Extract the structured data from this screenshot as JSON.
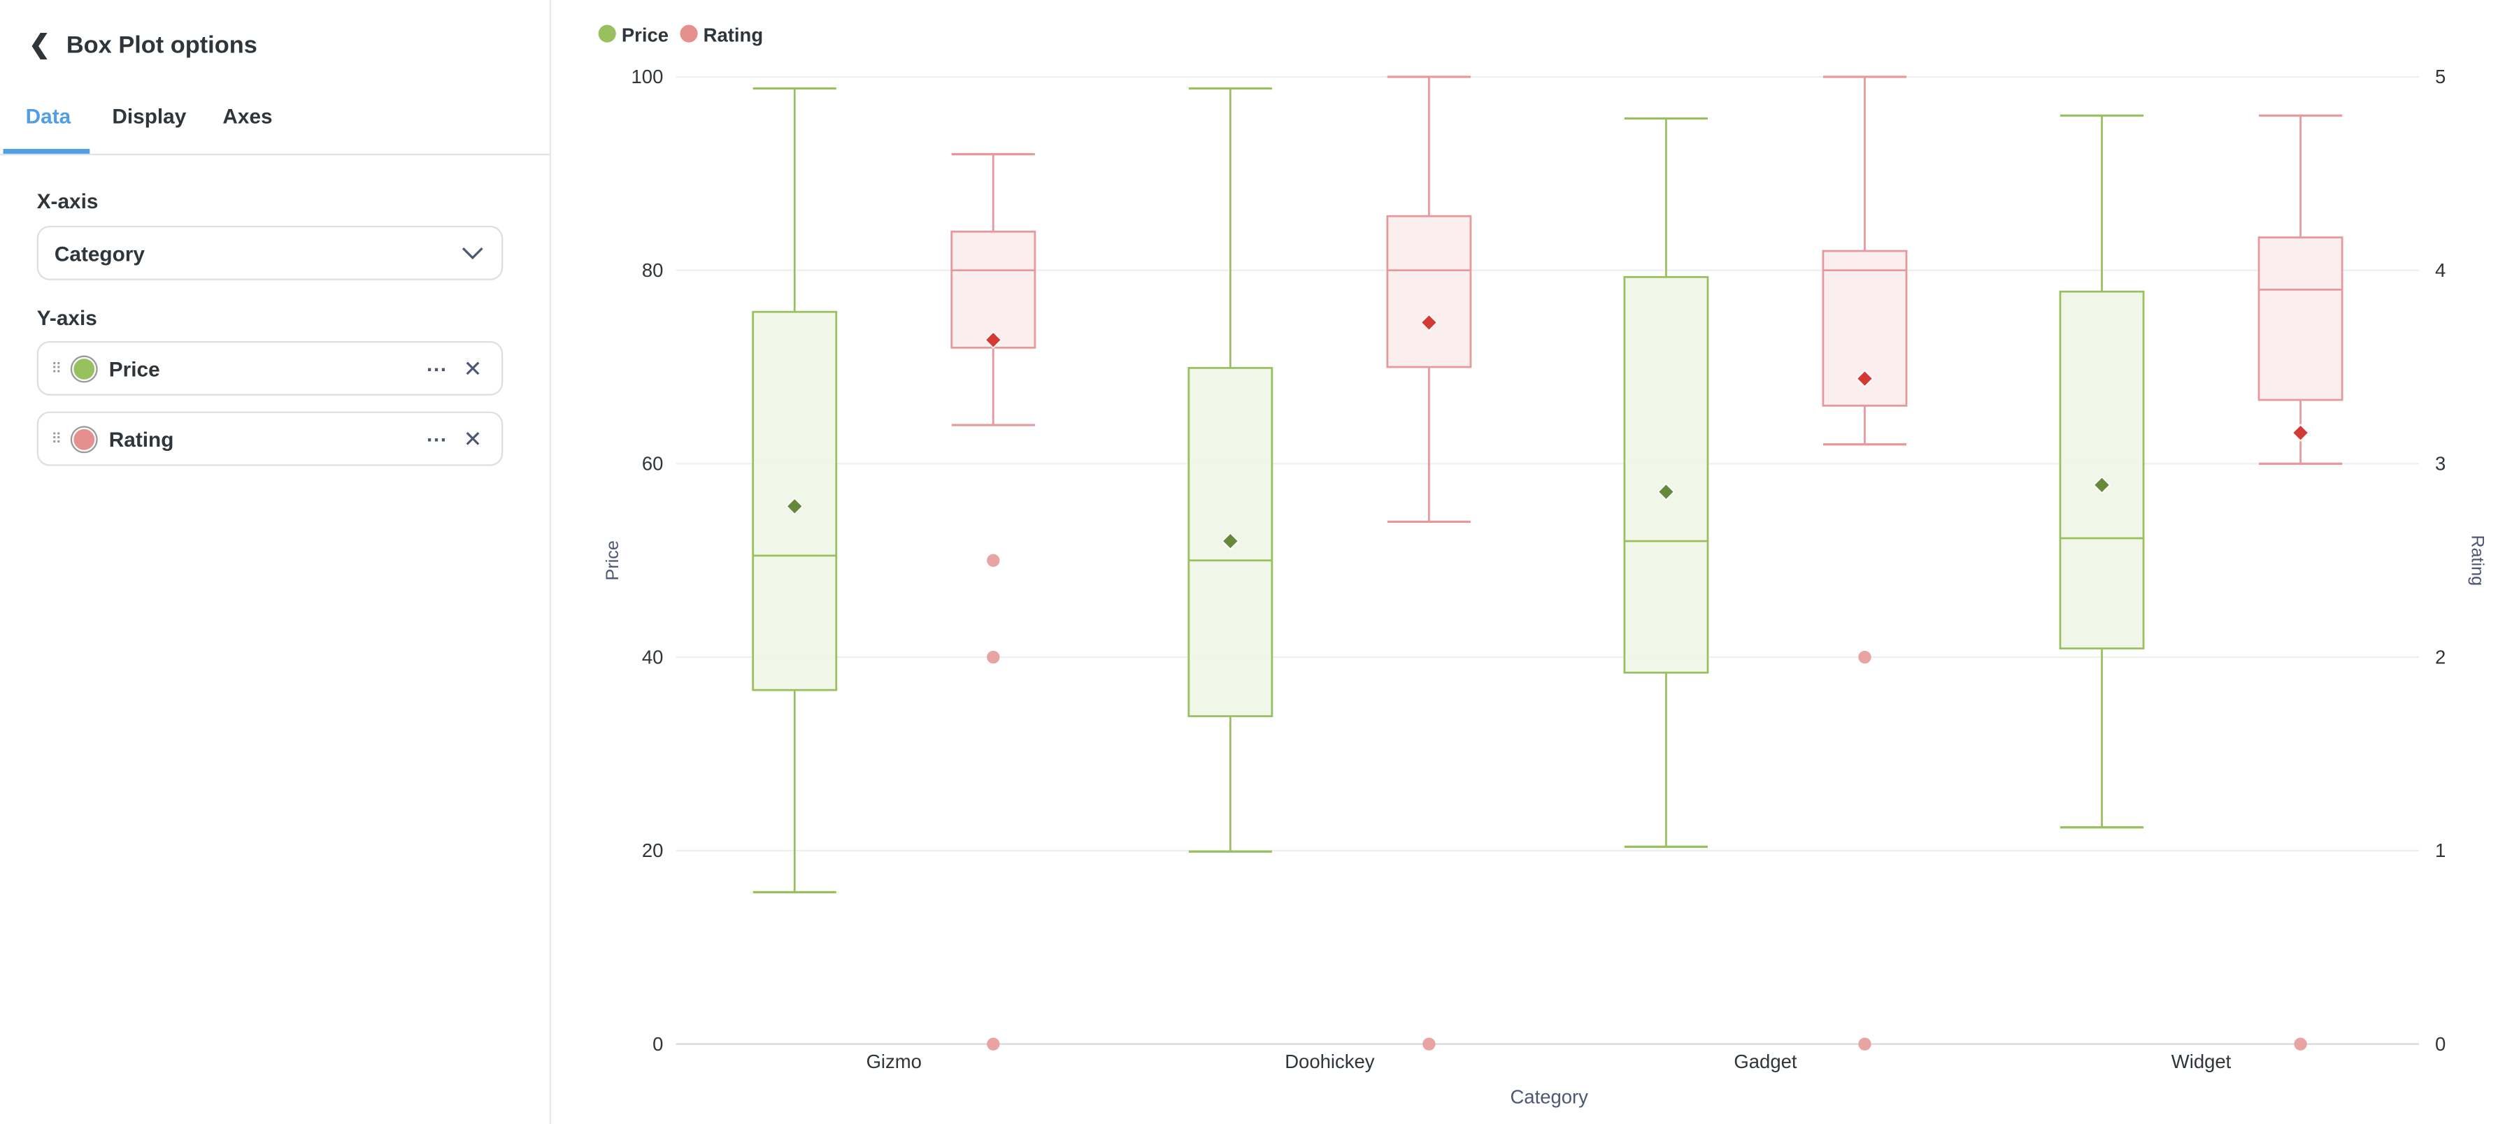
{
  "sidebar": {
    "title": "Box Plot options",
    "tabs": [
      {
        "label": "Data",
        "active": true
      },
      {
        "label": "Display"
      },
      {
        "label": "Axes"
      }
    ],
    "x_axis_label": "X-axis",
    "x_axis_value": "Category",
    "y_axis_label": "Y-axis",
    "y_series": [
      {
        "label": "Price",
        "color": "#98c05f"
      },
      {
        "label": "Rating",
        "color": "#e5908f"
      }
    ]
  },
  "chart_data": {
    "type": "boxplot",
    "xlabel": "Category",
    "ylabel_left": "Price",
    "ylabel_right": "Rating",
    "categories": [
      "Gizmo",
      "Doohickey",
      "Gadget",
      "Widget"
    ],
    "ylim_left": [
      0,
      100
    ],
    "yticks_left": [
      "0",
      "20",
      "40",
      "60",
      "80",
      "100"
    ],
    "ylim_right": [
      0,
      5
    ],
    "yticks_right": [
      "0",
      "1",
      "2",
      "3",
      "4",
      "5"
    ],
    "grid": true,
    "legend": "top-left",
    "series": [
      {
        "name": "Price",
        "axis": "left",
        "color": "#98c05f",
        "fill": "#eef5e6",
        "mean_color": "#66883a",
        "boxes": [
          {
            "min": 15.7,
            "q1": 36.6,
            "median": 50.5,
            "q3": 75.7,
            "max": 98.8,
            "mean": 55.6,
            "outliers": []
          },
          {
            "min": 19.9,
            "q1": 33.9,
            "median": 50.0,
            "q3": 69.9,
            "max": 98.8,
            "mean": 52.0,
            "outliers": []
          },
          {
            "min": 20.4,
            "q1": 38.4,
            "median": 52.0,
            "q3": 79.3,
            "max": 95.7,
            "mean": 57.1,
            "outliers": []
          },
          {
            "min": 22.4,
            "q1": 40.9,
            "median": 52.3,
            "q3": 77.8,
            "max": 96.0,
            "mean": 57.8,
            "outliers": []
          }
        ]
      },
      {
        "name": "Rating",
        "axis": "right",
        "color": "#e8989a",
        "fill": "#faeced",
        "mean_color": "#d33a33",
        "outlier_color": "#e8a3a3",
        "boxes": [
          {
            "min": 3.2,
            "q1": 3.6,
            "median": 4.0,
            "q3": 4.2,
            "max": 4.6,
            "mean": 3.64,
            "outliers": [
              2.5,
              2.0,
              0
            ]
          },
          {
            "min": 2.7,
            "q1": 3.5,
            "median": 4.0,
            "q3": 4.28,
            "max": 5.0,
            "mean": 3.73,
            "outliers": [
              0
            ]
          },
          {
            "min": 3.1,
            "q1": 3.3,
            "median": 4.0,
            "q3": 4.1,
            "max": 5.0,
            "mean": 3.44,
            "outliers": [
              2.0,
              0
            ]
          },
          {
            "min": 3.0,
            "q1": 3.33,
            "median": 3.9,
            "q3": 4.17,
            "max": 4.8,
            "mean": 3.16,
            "outliers": [
              0
            ]
          }
        ]
      }
    ]
  }
}
